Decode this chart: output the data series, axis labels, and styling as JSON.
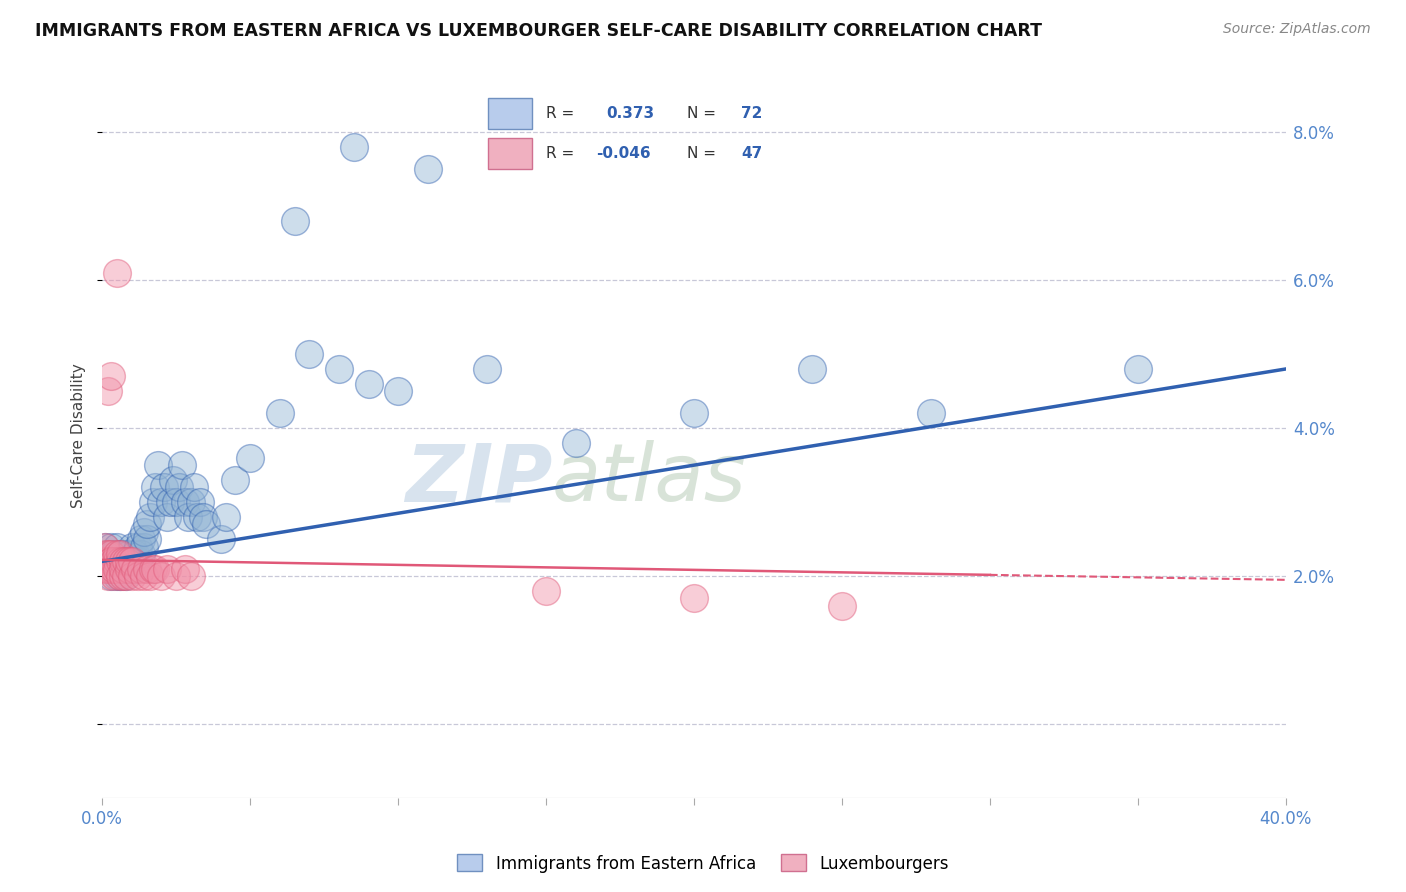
{
  "title": "IMMIGRANTS FROM EASTERN AFRICA VS LUXEMBOURGER SELF-CARE DISABILITY CORRELATION CHART",
  "source": "Source: ZipAtlas.com",
  "ylabel": "Self-Care Disability",
  "xlim": [
    0.0,
    0.4
  ],
  "ylim": [
    -0.01,
    0.088
  ],
  "xticks": [
    0.0,
    0.05,
    0.1,
    0.15,
    0.2,
    0.25,
    0.3,
    0.35,
    0.4
  ],
  "yticks": [
    0.0,
    0.02,
    0.04,
    0.06,
    0.08
  ],
  "ytick_labels": [
    "",
    "2.0%",
    "4.0%",
    "6.0%",
    "8.0%"
  ],
  "xtick_labels_show": [
    "0.0%",
    "40.0%"
  ],
  "blue_color": "#92b4d4",
  "pink_color": "#f090a8",
  "blue_line_color": "#3060b0",
  "pink_line_color": "#e05878",
  "series1_label": "Immigrants from Eastern Africa",
  "series2_label": "Luxembourgers",
  "watermark_zip": "ZIP",
  "watermark_atlas": "atlas",
  "background_color": "#ffffff",
  "grid_color": "#c8c8d8",
  "blue_points_x": [
    0.001,
    0.001,
    0.002,
    0.002,
    0.003,
    0.003,
    0.003,
    0.004,
    0.004,
    0.005,
    0.005,
    0.005,
    0.006,
    0.006,
    0.006,
    0.007,
    0.007,
    0.007,
    0.008,
    0.008,
    0.009,
    0.009,
    0.009,
    0.01,
    0.01,
    0.01,
    0.011,
    0.011,
    0.012,
    0.012,
    0.013,
    0.013,
    0.014,
    0.014,
    0.015,
    0.015,
    0.016,
    0.017,
    0.018,
    0.019,
    0.02,
    0.021,
    0.022,
    0.023,
    0.024,
    0.025,
    0.026,
    0.027,
    0.028,
    0.029,
    0.03,
    0.031,
    0.032,
    0.033,
    0.034,
    0.035,
    0.04,
    0.042,
    0.045,
    0.05,
    0.06,
    0.07,
    0.08,
    0.09,
    0.1,
    0.11,
    0.13,
    0.16,
    0.2,
    0.24,
    0.28,
    0.35
  ],
  "blue_points_y": [
    0.022,
    0.024,
    0.021,
    0.023,
    0.02,
    0.022,
    0.024,
    0.021,
    0.023,
    0.02,
    0.022,
    0.024,
    0.02,
    0.022,
    0.023,
    0.021,
    0.022,
    0.023,
    0.02,
    0.022,
    0.021,
    0.022,
    0.023,
    0.021,
    0.022,
    0.024,
    0.022,
    0.023,
    0.022,
    0.024,
    0.023,
    0.025,
    0.024,
    0.026,
    0.025,
    0.027,
    0.028,
    0.03,
    0.032,
    0.035,
    0.03,
    0.032,
    0.028,
    0.03,
    0.033,
    0.03,
    0.032,
    0.035,
    0.03,
    0.028,
    0.03,
    0.032,
    0.028,
    0.03,
    0.028,
    0.027,
    0.025,
    0.028,
    0.033,
    0.036,
    0.042,
    0.05,
    0.048,
    0.046,
    0.045,
    0.075,
    0.048,
    0.038,
    0.042,
    0.048,
    0.042,
    0.048
  ],
  "blue_outlier_x": [
    0.085
  ],
  "blue_outlier_y": [
    0.078
  ],
  "blue_high_x": [
    0.065
  ],
  "blue_high_y": [
    0.068
  ],
  "pink_points_x": [
    0.001,
    0.001,
    0.001,
    0.001,
    0.001,
    0.002,
    0.002,
    0.002,
    0.002,
    0.003,
    0.003,
    0.003,
    0.003,
    0.004,
    0.004,
    0.004,
    0.005,
    0.005,
    0.005,
    0.006,
    0.006,
    0.006,
    0.007,
    0.007,
    0.007,
    0.008,
    0.008,
    0.009,
    0.009,
    0.01,
    0.01,
    0.011,
    0.012,
    0.013,
    0.014,
    0.015,
    0.016,
    0.017,
    0.018,
    0.02,
    0.022,
    0.025,
    0.028,
    0.03,
    0.15,
    0.2,
    0.25
  ],
  "pink_points_y": [
    0.022,
    0.021,
    0.023,
    0.022,
    0.024,
    0.02,
    0.022,
    0.021,
    0.023,
    0.022,
    0.021,
    0.023,
    0.022,
    0.02,
    0.022,
    0.021,
    0.022,
    0.021,
    0.023,
    0.022,
    0.02,
    0.023,
    0.02,
    0.022,
    0.021,
    0.02,
    0.022,
    0.021,
    0.022,
    0.02,
    0.022,
    0.021,
    0.02,
    0.021,
    0.02,
    0.021,
    0.02,
    0.021,
    0.021,
    0.02,
    0.021,
    0.02,
    0.021,
    0.02,
    0.018,
    0.017,
    0.016
  ],
  "pink_outlier1_x": [
    0.005
  ],
  "pink_outlier1_y": [
    0.061
  ],
  "pink_outlier2_x": [
    0.002
  ],
  "pink_outlier2_y": [
    0.045
  ],
  "pink_outlier3_x": [
    0.003
  ],
  "pink_outlier3_y": [
    0.047
  ]
}
